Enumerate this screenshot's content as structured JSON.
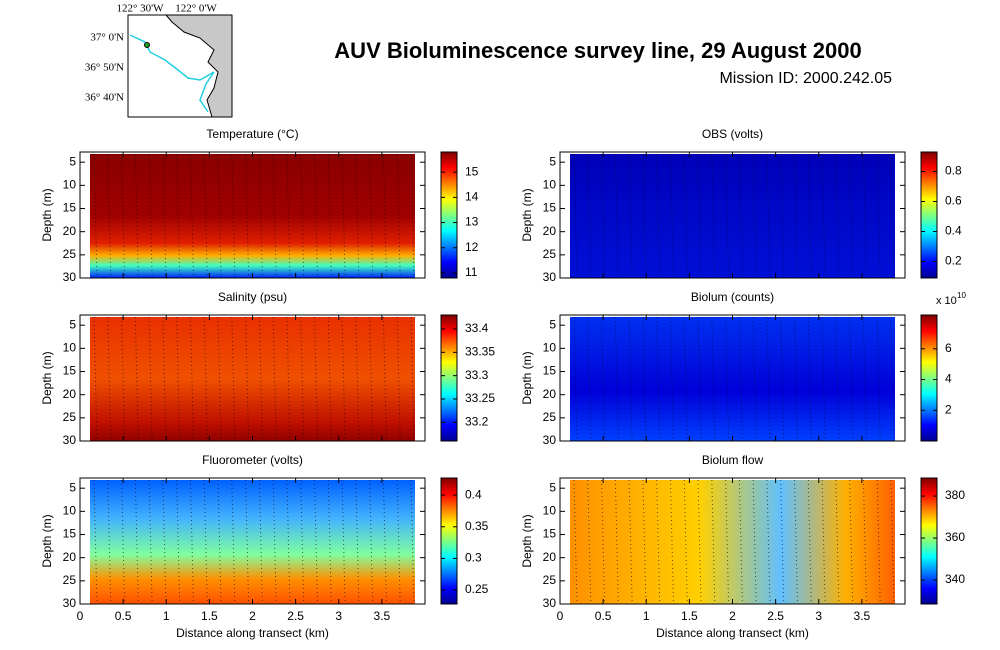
{
  "title": "AUV Bioluminescence survey line, 29 August 2000",
  "subtitle": "Mission ID: 2000.242.05",
  "map": {
    "xticks": [
      "122° 30'W",
      "122° 0'W"
    ],
    "yticks": [
      "37° 0'N",
      "36° 50'N",
      "36° 40'N"
    ]
  },
  "chart_data": [
    {
      "type": "heatmap",
      "title": "Temperature (°C)",
      "ylabel": "Depth (m)",
      "xlim": [
        0,
        4
      ],
      "xticks": [
        0,
        0.5,
        1,
        1.5,
        2,
        2.5,
        3,
        3.5
      ],
      "ylim": [
        2.8,
        30
      ],
      "y_reversed": true,
      "yticks": [
        5,
        10,
        15,
        20,
        25,
        30
      ],
      "colorbar": {
        "lim": [
          10.8,
          15.8
        ],
        "ticks": [
          11,
          12,
          13,
          14,
          15
        ]
      }
    },
    {
      "type": "heatmap",
      "title": "OBS (volts)",
      "ylabel": "Depth (m)",
      "xlim": [
        0,
        4
      ],
      "xticks": [
        0,
        0.5,
        1,
        1.5,
        2,
        2.5,
        3,
        3.5
      ],
      "ylim": [
        2.8,
        30
      ],
      "y_reversed": true,
      "yticks": [
        5,
        10,
        15,
        20,
        25,
        30
      ],
      "colorbar": {
        "lim": [
          0.09,
          0.93
        ],
        "ticks": [
          0.2,
          0.4,
          0.6,
          0.8
        ]
      }
    },
    {
      "type": "heatmap",
      "title": "Salinity (psu)",
      "ylabel": "Depth (m)",
      "xlim": [
        0,
        4
      ],
      "xticks": [
        0,
        0.5,
        1,
        1.5,
        2,
        2.5,
        3,
        3.5
      ],
      "ylim": [
        2.8,
        30
      ],
      "y_reversed": true,
      "yticks": [
        5,
        10,
        15,
        20,
        25,
        30
      ],
      "colorbar": {
        "lim": [
          33.16,
          33.43
        ],
        "ticks": [
          33.2,
          33.25,
          33.3,
          33.35,
          33.4
        ]
      }
    },
    {
      "type": "heatmap",
      "title": "Biolum (counts)",
      "ylabel": "Depth (m)",
      "xlim": [
        0,
        4
      ],
      "xticks": [
        0,
        0.5,
        1,
        1.5,
        2,
        2.5,
        3,
        3.5
      ],
      "ylim": [
        2.8,
        30
      ],
      "y_reversed": true,
      "yticks": [
        5,
        10,
        15,
        20,
        25,
        30
      ],
      "colorbar": {
        "lim": [
          0,
          8.2
        ],
        "ticks": [
          2,
          4,
          6
        ],
        "multiplier_label": "x 10",
        "multiplier_exponent": "10"
      }
    },
    {
      "type": "heatmap",
      "title": "Fluorometer (volts)",
      "ylabel": "Depth (m)",
      "xlabel": "Distance along transect (km)",
      "xlim": [
        0,
        4
      ],
      "xticks": [
        0,
        0.5,
        1,
        1.5,
        2,
        2.5,
        3,
        3.5
      ],
      "ylim": [
        2.8,
        30
      ],
      "y_reversed": true,
      "yticks": [
        5,
        10,
        15,
        20,
        25,
        30
      ],
      "colorbar": {
        "lim": [
          0.228,
          0.427
        ],
        "ticks": [
          0.25,
          0.3,
          0.35,
          0.4
        ]
      }
    },
    {
      "type": "heatmap",
      "title": "Biolum flow",
      "ylabel": "Depth (m)",
      "xlabel": "Distance along transect (km)",
      "xlim": [
        0,
        4
      ],
      "xticks": [
        0,
        0.5,
        1,
        1.5,
        2,
        2.5,
        3,
        3.5
      ],
      "ylim": [
        2.8,
        30
      ],
      "y_reversed": true,
      "yticks": [
        5,
        10,
        15,
        20,
        25,
        30
      ],
      "colorbar": {
        "lim": [
          328.6,
          388.6
        ],
        "ticks": [
          340,
          360,
          380
        ]
      }
    }
  ]
}
